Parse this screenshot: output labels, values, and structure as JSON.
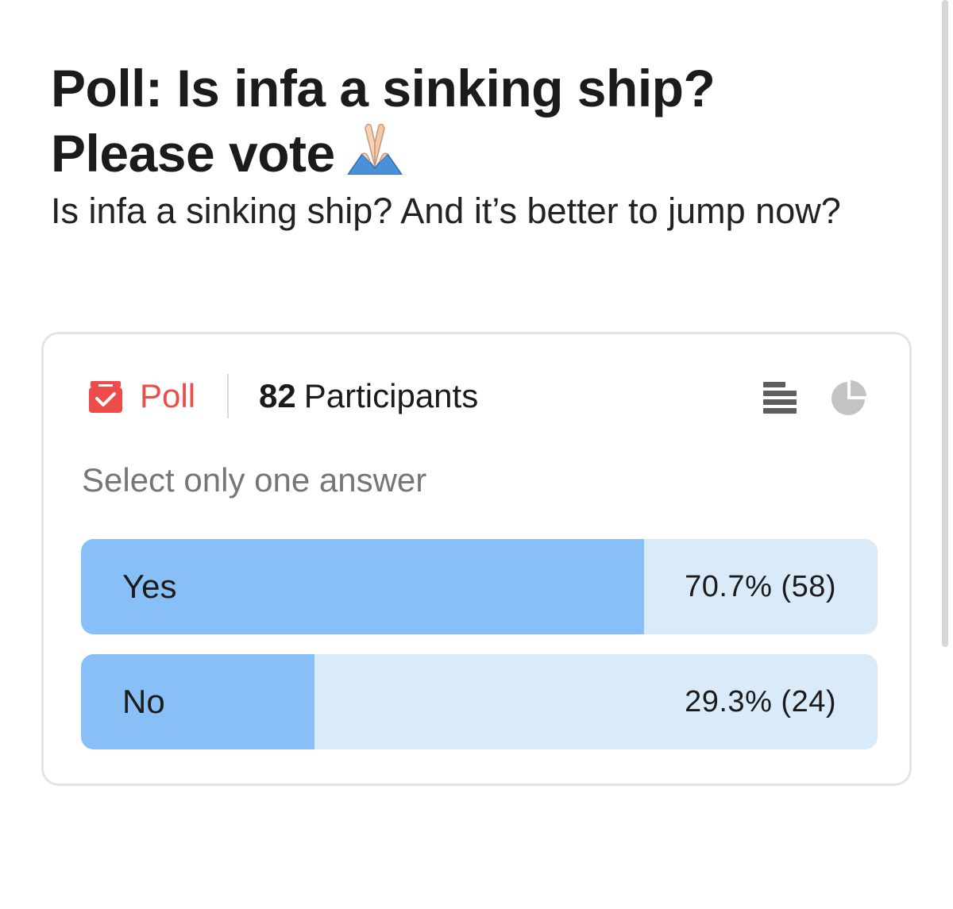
{
  "post": {
    "title_line1": "Poll: Is infa a sinking ship?",
    "title_line2": "Please vote",
    "title_emoji": "folded-hands-icon",
    "body": "Is infa a sinking ship? And it’s better to jump now?"
  },
  "poll": {
    "label": "Poll",
    "participant_count": "82",
    "participants_label": "Participants",
    "instructions": "Select only one answer",
    "view_icons": [
      "list-view-icon",
      "pie-chart-icon"
    ],
    "options": [
      {
        "label": "Yes",
        "percent": 70.7,
        "result": "70.7% (58)"
      },
      {
        "label": "No",
        "percent": 29.3,
        "result": "29.3% (24)"
      }
    ],
    "colors": {
      "accent": "#ee4b4b",
      "bar_fill": "#88bff7",
      "bar_track": "#d9eaf9"
    }
  }
}
